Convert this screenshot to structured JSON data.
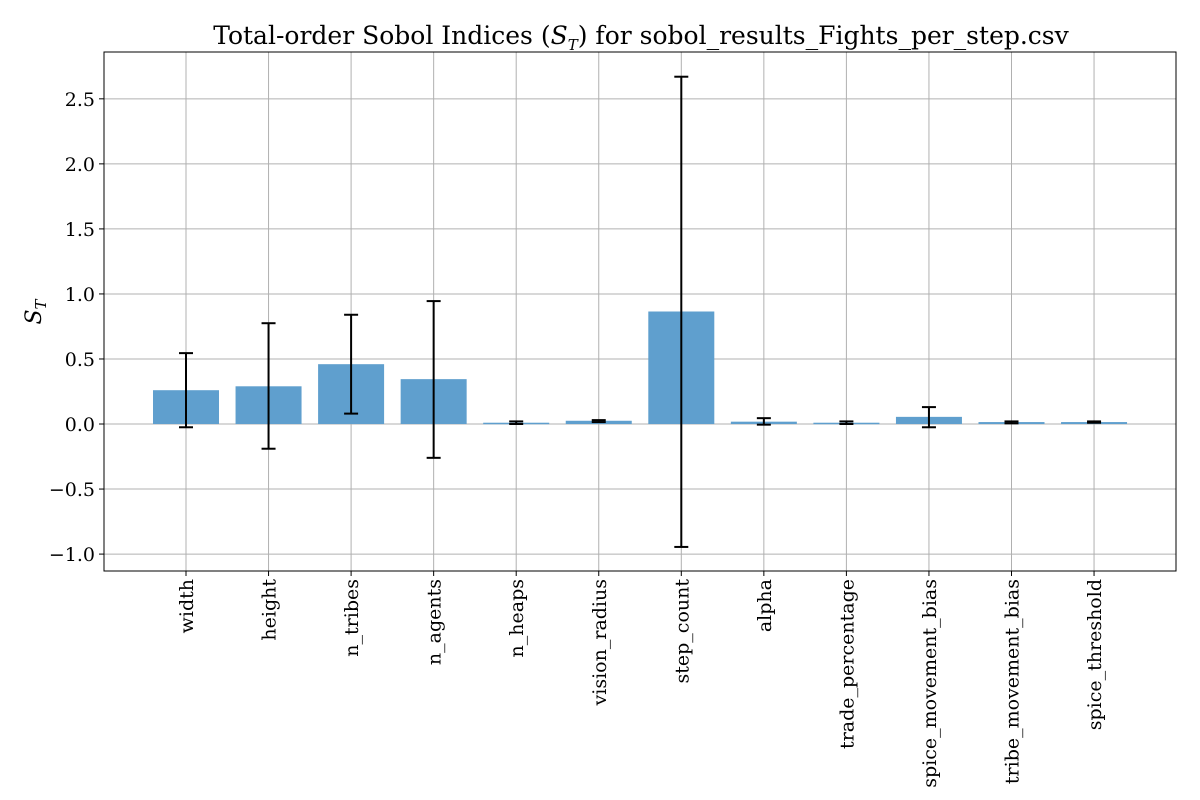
{
  "chart_data": {
    "type": "bar",
    "title_prefix": "Total-order Sobol Indices (",
    "title_symbol": "S",
    "title_subscript": "T",
    "title_suffix": ") for sobol_results_Fights_per_step.csv",
    "ylabel_symbol": "S",
    "ylabel_subscript": "T",
    "categories": [
      "width",
      "height",
      "n_tribes",
      "n_agents",
      "n_heaps",
      "vision_radius",
      "step_count",
      "alpha",
      "trade_percentage",
      "spice_movement_bias",
      "tribe_movement_bias",
      "spice_threshold"
    ],
    "values": [
      0.26,
      0.29,
      0.46,
      0.345,
      0.01,
      0.025,
      0.865,
      0.018,
      0.01,
      0.055,
      0.015,
      0.015
    ],
    "error_low": [
      -0.025,
      -0.19,
      0.08,
      -0.26,
      0.0,
      0.015,
      -0.945,
      -0.005,
      0.0,
      -0.025,
      0.005,
      0.01
    ],
    "error_high": [
      0.545,
      0.775,
      0.84,
      0.945,
      0.02,
      0.03,
      2.67,
      0.045,
      0.02,
      0.13,
      0.02,
      0.02
    ],
    "yticks": [
      -1.0,
      -0.5,
      0.0,
      0.5,
      1.0,
      1.5,
      2.0,
      2.5
    ],
    "ytick_labels": [
      "−1.0",
      "−0.5",
      "0.0",
      "0.5",
      "1.0",
      "1.5",
      "2.0",
      "2.5"
    ],
    "ylim": [
      -1.13,
      2.86
    ],
    "grid": true,
    "bar_color": "#5f9fce",
    "error_color": "#000000",
    "grid_color": "#b0b0b0"
  }
}
